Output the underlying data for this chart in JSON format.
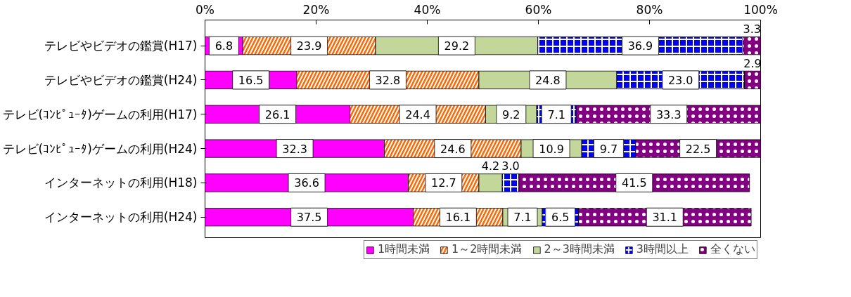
{
  "chart_data": {
    "type": "bar",
    "orientation": "horizontal",
    "stacked": true,
    "categories": [
      "テレビやビデオの鑑賞(H17)",
      "テレビやビデオの鑑賞(H24)",
      "テレビ(ｺﾝﾋﾟｭｰﾀ)ゲームの利用(H17)",
      "テレビ(ｺﾝﾋﾟｭｰﾀ)ゲームの利用(H24)",
      "インターネットの利用(H18)",
      "インターネットの利用(H24)"
    ],
    "series": [
      {
        "name": "1時間未満",
        "color": "#ff00ff",
        "values": [
          6.8,
          16.5,
          26.1,
          32.3,
          36.6,
          37.5
        ],
        "value_labels": [
          "6.8",
          "16.5",
          "26.1",
          "32.3",
          "36.6",
          "37.5"
        ]
      },
      {
        "name": "1～2時間未満",
        "color": "#ff6600",
        "values": [
          23.9,
          32.8,
          24.4,
          24.6,
          12.7,
          16.1
        ],
        "value_labels": [
          "23.9",
          "32.8",
          "24.4",
          "24.6",
          "12.7",
          "16.1"
        ]
      },
      {
        "name": "2～3時間未満",
        "color": "#c4d79b",
        "values": [
          29.2,
          24.8,
          9.2,
          10.9,
          4.2,
          7.1
        ],
        "value_labels": [
          "29.2",
          "24.8",
          "9.2",
          "10.9",
          "4.2",
          "7.1"
        ]
      },
      {
        "name": "3時間以上",
        "color": "#0000ff",
        "values": [
          36.9,
          23.0,
          7.1,
          9.7,
          3.0,
          6.5
        ],
        "value_labels": [
          "36.9",
          "23.0",
          "7.1",
          "9.7",
          "3.0",
          "6.5"
        ]
      },
      {
        "name": "全くない",
        "color": "#800080",
        "values": [
          3.3,
          2.9,
          33.3,
          22.5,
          41.5,
          31.1
        ],
        "value_labels": [
          "3.3",
          "2.9",
          "33.3",
          "22.5",
          "41.5",
          "31.1"
        ]
      }
    ],
    "xlim": [
      0,
      100
    ],
    "xticks": [
      {
        "value": 0,
        "label": "0%"
      },
      {
        "value": 20,
        "label": "20%"
      },
      {
        "value": 40,
        "label": "40%"
      },
      {
        "value": 60,
        "label": "60%"
      },
      {
        "value": 80,
        "label": "80%"
      },
      {
        "value": 100,
        "label": "100%"
      }
    ],
    "legend": "bottom",
    "grid": false
  }
}
